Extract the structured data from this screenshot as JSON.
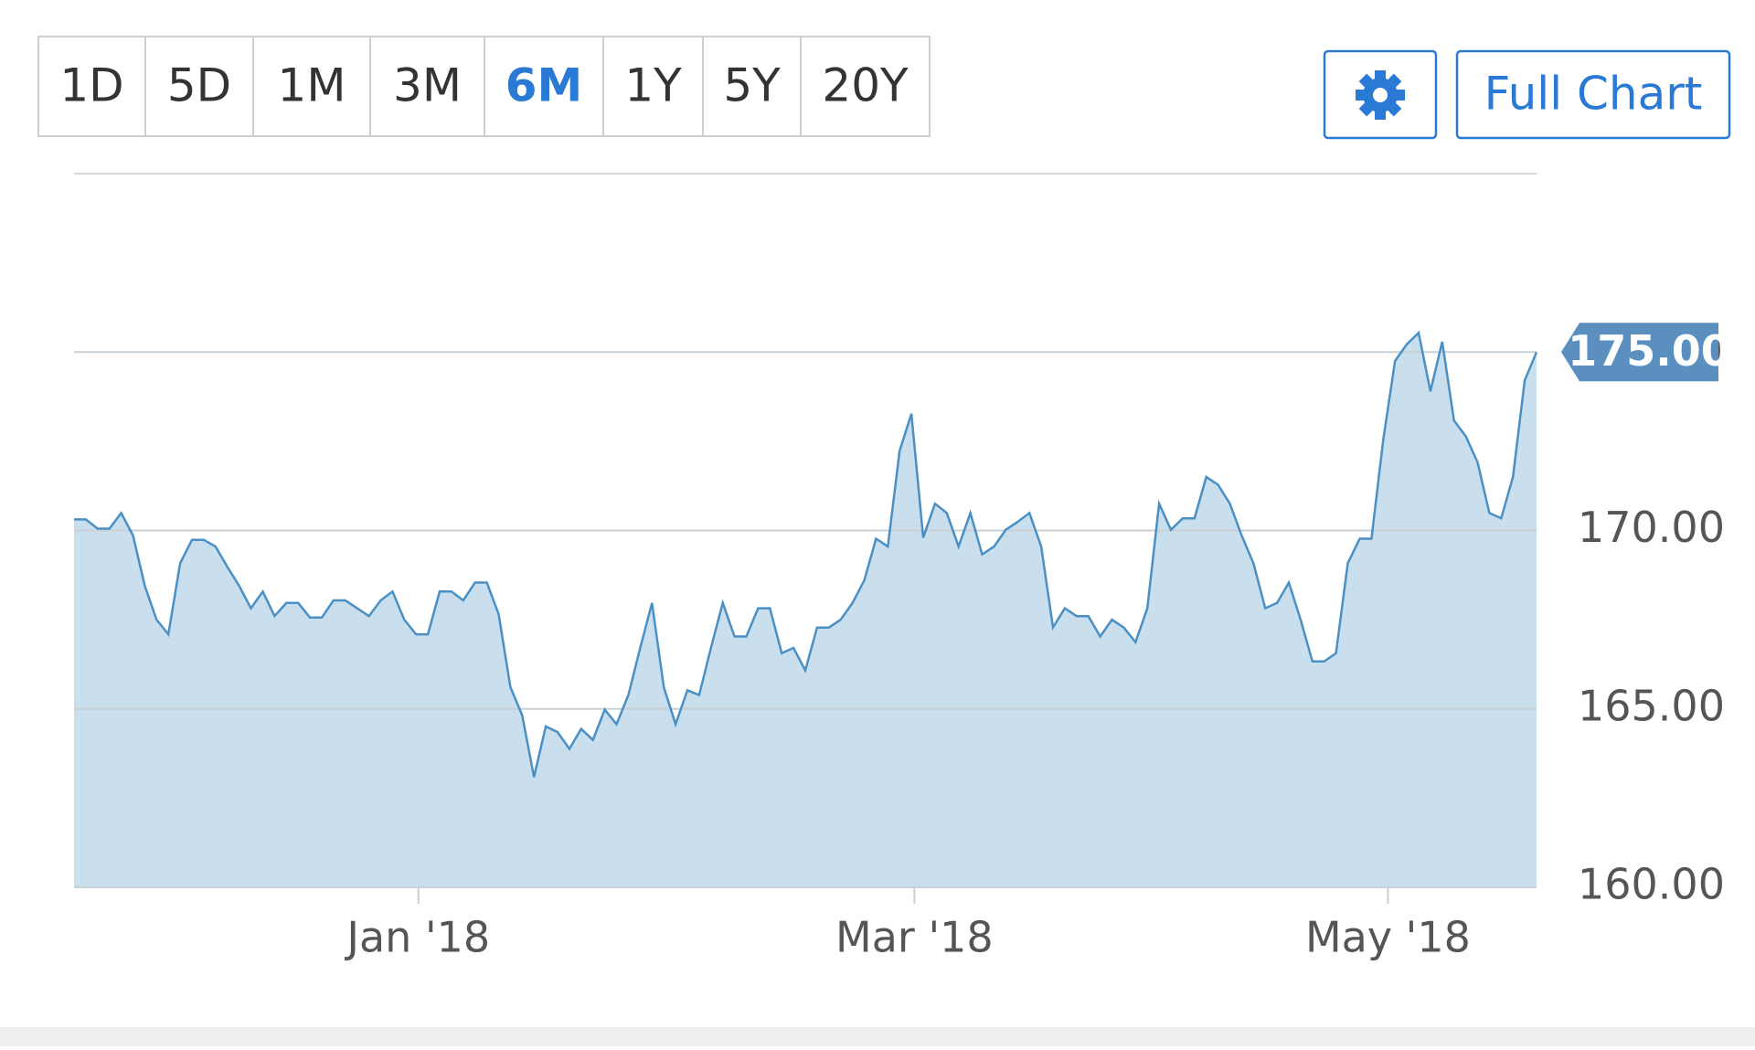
{
  "toolbar": {
    "ranges": [
      "1D",
      "5D",
      "1M",
      "3M",
      "6M",
      "1Y",
      "5Y",
      "20Y"
    ],
    "selected": "6M",
    "full_chart": "Full Chart"
  },
  "chart_data": {
    "type": "area",
    "values": [
      170.31,
      170.31,
      170.05,
      170.05,
      170.49,
      169.86,
      168.45,
      167.5,
      167.09,
      169.08,
      169.74,
      169.74,
      169.55,
      168.98,
      168.45,
      167.82,
      168.29,
      167.6,
      167.97,
      167.97,
      167.56,
      167.56,
      168.04,
      168.04,
      167.82,
      167.6,
      168.04,
      168.29,
      167.5,
      167.09,
      167.09,
      168.29,
      168.29,
      168.04,
      168.54,
      168.54,
      167.66,
      165.61,
      164.82,
      163.09,
      164.51,
      164.35,
      163.88,
      164.44,
      164.13,
      164.98,
      164.57,
      165.39,
      166.71,
      167.97,
      165.61,
      164.57,
      165.52,
      165.39,
      166.71,
      167.97,
      167.03,
      167.03,
      167.82,
      167.82,
      166.56,
      166.71,
      166.08,
      167.28,
      167.28,
      167.5,
      167.97,
      168.6,
      169.77,
      169.55,
      172.23,
      173.27,
      169.8,
      170.75,
      170.49,
      169.55,
      170.49,
      169.33,
      169.55,
      170.02,
      170.24,
      170.49,
      169.55,
      167.28,
      167.82,
      167.6,
      167.6,
      167.03,
      167.5,
      167.28,
      166.87,
      167.82,
      170.75,
      170.02,
      170.34,
      170.34,
      171.5,
      171.28,
      170.75,
      169.86,
      169.08,
      167.82,
      167.97,
      168.54,
      167.5,
      166.33,
      166.33,
      166.56,
      169.08,
      169.77,
      169.77,
      172.54,
      174.75,
      175.22,
      175.54,
      173.9,
      175.29,
      173.08,
      172.64,
      171.91,
      170.49,
      170.34,
      171.5,
      174.21,
      175.0
    ],
    "color": "#4a90c4",
    "fill": "#cadfee",
    "xlim": [
      0,
      124
    ],
    "xticks": [
      {
        "value": 29.2,
        "label": "Jan '18"
      },
      {
        "value": 71.25,
        "label": "Mar '18"
      },
      {
        "value": 111.4,
        "label": "May '18"
      }
    ],
    "ylim": [
      160,
      180
    ],
    "yticks": [
      {
        "value": 160,
        "label": "160.00"
      },
      {
        "value": 165,
        "label": "165.00"
      },
      {
        "value": 170,
        "label": "170.00"
      },
      {
        "value": 175,
        "label": "175.00"
      }
    ],
    "grid": true,
    "last_price_label": {
      "value": 175,
      "label": "175.00"
    }
  }
}
